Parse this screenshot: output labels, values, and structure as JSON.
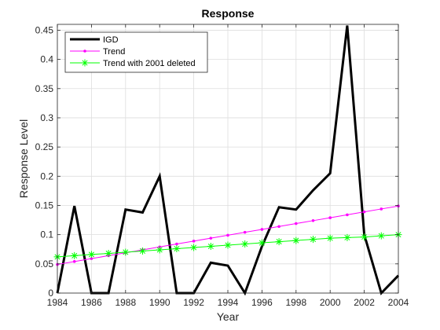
{
  "chart_data": {
    "type": "line",
    "title": "Response",
    "xlabel": "Year",
    "ylabel": "Response Level",
    "xlim": [
      1984,
      2004
    ],
    "ylim": [
      0,
      0.46
    ],
    "xticks": [
      1984,
      1986,
      1988,
      1990,
      1992,
      1994,
      1996,
      1998,
      2000,
      2002,
      2004
    ],
    "xtick_labels": [
      "1984",
      "1986",
      "1988",
      "1990",
      "1992",
      "1994",
      "1996",
      "1998",
      "2000",
      "2002",
      "2004"
    ],
    "yticks": [
      0,
      0.05,
      0.1,
      0.15,
      0.2,
      0.25,
      0.3,
      0.35,
      0.4,
      0.45
    ],
    "ytick_labels": [
      "0",
      "0.05",
      "0.1",
      "0.15",
      "0.2",
      "0.25",
      "0.3",
      "0.35",
      "0.4",
      "0.45"
    ],
    "grid": true,
    "legend_position": "top-left",
    "x": [
      1984,
      1985,
      1986,
      1987,
      1988,
      1989,
      1990,
      1991,
      1992,
      1993,
      1994,
      1995,
      1996,
      1997,
      1998,
      1999,
      2000,
      2001,
      2002,
      2003,
      2004
    ],
    "series": [
      {
        "name": "IGD",
        "color": "#000000",
        "marker": "none",
        "values": [
          0,
          0.149,
          0,
          0,
          0.143,
          0.138,
          0.2,
          0,
          0,
          0.052,
          0.047,
          0,
          0.08,
          0.147,
          0.143,
          0.176,
          0.205,
          0.458,
          0.1,
          0,
          0.03
        ]
      },
      {
        "name": "Trend",
        "color": "#ff00ff",
        "marker": "dot",
        "values": [
          0.049,
          0.054,
          0.059,
          0.064,
          0.069,
          0.074,
          0.079,
          0.084,
          0.089,
          0.094,
          0.099,
          0.104,
          0.109,
          0.114,
          0.119,
          0.124,
          0.129,
          0.134,
          0.139,
          0.144,
          0.149
        ]
      },
      {
        "name": "Trend with 2001 deleted",
        "color": "#00ff00",
        "marker": "asterisk",
        "values": [
          0.062,
          0.064,
          0.066,
          0.068,
          0.07,
          0.072,
          0.074,
          0.076,
          0.078,
          0.08,
          0.082,
          0.084,
          0.086,
          0.088,
          0.09,
          0.092,
          0.094,
          0.095,
          0.096,
          0.098,
          0.1
        ]
      }
    ]
  }
}
